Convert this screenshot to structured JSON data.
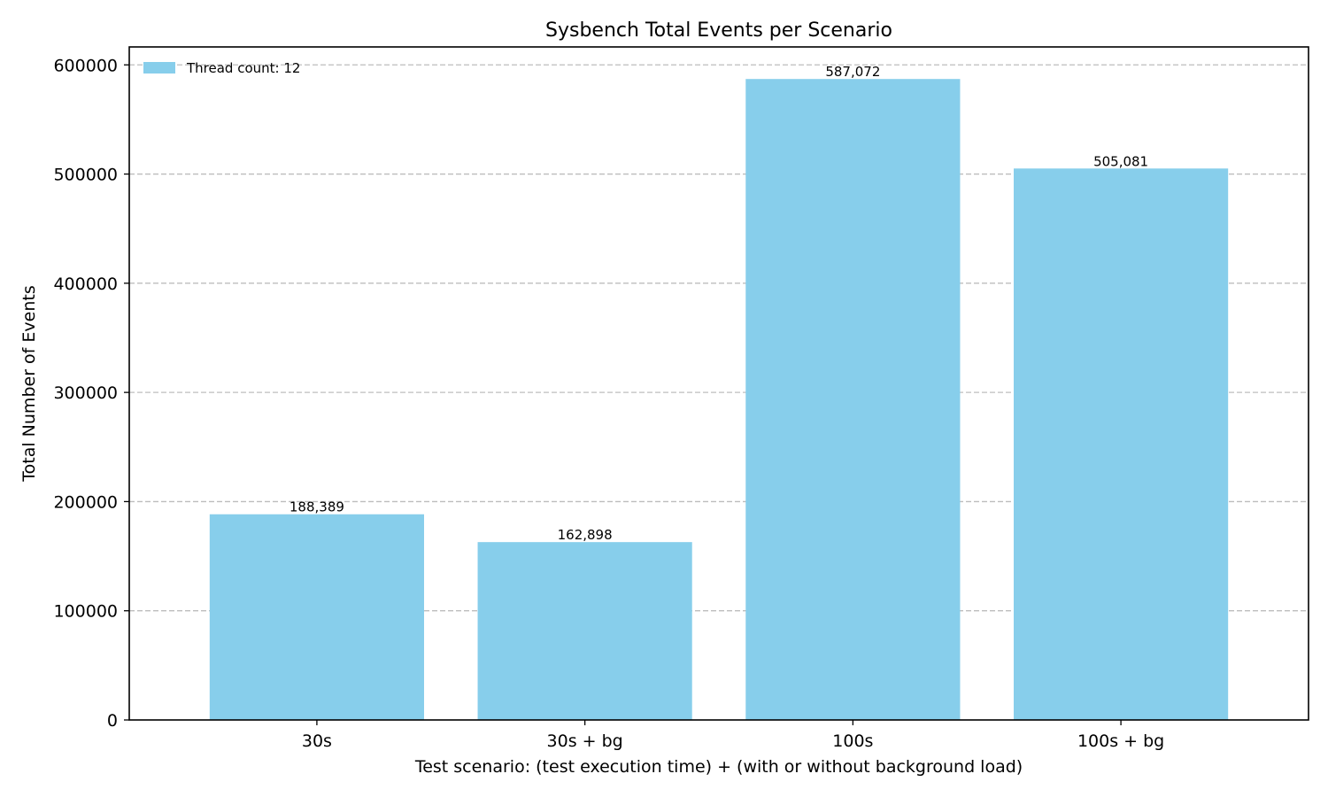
{
  "chart_data": {
    "type": "bar",
    "title": "Sysbench Total Events per Scenario",
    "xlabel": "Test scenario: (test execution time) + (with or without background load)",
    "ylabel": "Total Number of Events",
    "categories": [
      "30s",
      "30s + bg",
      "100s",
      "100s + bg"
    ],
    "series": [
      {
        "name": "Thread count: 12",
        "values": [
          188389,
          162898,
          587072,
          505081
        ],
        "value_labels": [
          "188,389",
          "162,898",
          "587,072",
          "505,081"
        ],
        "color": "#87CEEB"
      }
    ],
    "yticks": [
      0,
      100000,
      200000,
      300000,
      400000,
      500000,
      600000
    ],
    "ytick_labels": [
      "0",
      "100000",
      "200000",
      "300000",
      "400000",
      "500000",
      "600000"
    ],
    "ylim": [
      0,
      616428
    ],
    "grid": "y-dashed",
    "legend_position": "top-left"
  }
}
